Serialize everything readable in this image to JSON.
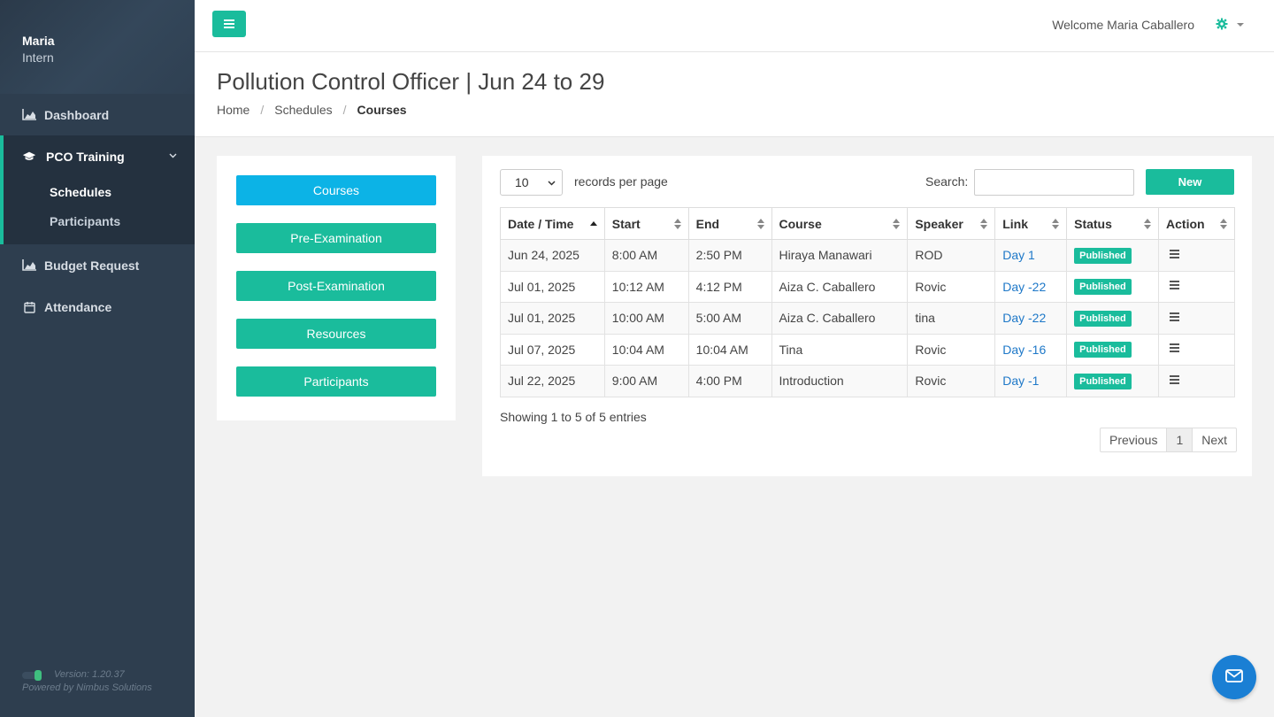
{
  "user": {
    "name": "Maria",
    "role": "Intern"
  },
  "sidebar": {
    "items": [
      {
        "label": "Dashboard",
        "icon": "chart-area-icon"
      },
      {
        "label": "PCO Training",
        "icon": "graduation-cap-icon"
      },
      {
        "label": "Budget Request",
        "icon": "chart-area-icon"
      },
      {
        "label": "Attendance",
        "icon": "calendar-icon"
      }
    ],
    "sub_items": [
      {
        "label": "Schedules"
      },
      {
        "label": "Participants"
      }
    ],
    "version": "Version: 1.20.37",
    "powered_by": "Powered by Nimbus Solutions"
  },
  "topbar": {
    "welcome": "Welcome Maria Caballero"
  },
  "page": {
    "title": "Pollution Control Officer | Jun 24 to 29",
    "breadcrumb": [
      "Home",
      "Schedules",
      "Courses"
    ]
  },
  "left_buttons": [
    "Courses",
    "Pre-Examination",
    "Post-Examination",
    "Resources",
    "Participants"
  ],
  "table_controls": {
    "per_page_value": "10",
    "per_page_label": "records per page",
    "search_label": "Search:",
    "search_placeholder": "",
    "new_button": "New"
  },
  "table": {
    "headers": [
      "Date / Time",
      "Start",
      "End",
      "Course",
      "Speaker",
      "Link",
      "Status",
      "Action"
    ],
    "rows": [
      {
        "date": "Jun 24, 2025",
        "start": "8:00 AM",
        "end": "2:50 PM",
        "course": "Hiraya Manawari",
        "speaker": "ROD",
        "link": "Day 1",
        "status": "Published"
      },
      {
        "date": "Jul 01, 2025",
        "start": "10:12 AM",
        "end": "4:12 PM",
        "course": "Aiza C. Caballero",
        "speaker": "Rovic",
        "link": "Day -22",
        "status": "Published"
      },
      {
        "date": "Jul 01, 2025",
        "start": "10:00 AM",
        "end": "5:00 AM",
        "course": "Aiza C. Caballero",
        "speaker": "tina",
        "link": "Day -22",
        "status": "Published"
      },
      {
        "date": "Jul 07, 2025",
        "start": "10:04 AM",
        "end": "10:04 AM",
        "course": "Tina",
        "speaker": "Rovic",
        "link": "Day -16",
        "status": "Published"
      },
      {
        "date": "Jul 22, 2025",
        "start": "9:00 AM",
        "end": "4:00 PM",
        "course": "Introduction",
        "speaker": "Rovic",
        "link": "Day -1",
        "status": "Published"
      }
    ],
    "showing": "Showing 1 to 5 of 5 entries",
    "pager": {
      "previous": "Previous",
      "current": "1",
      "next": "Next"
    }
  },
  "colors": {
    "accent": "#1abc9c",
    "sidebar": "#2e3e4f",
    "info": "#0cb3e6",
    "fab": "#1a7fd4"
  }
}
